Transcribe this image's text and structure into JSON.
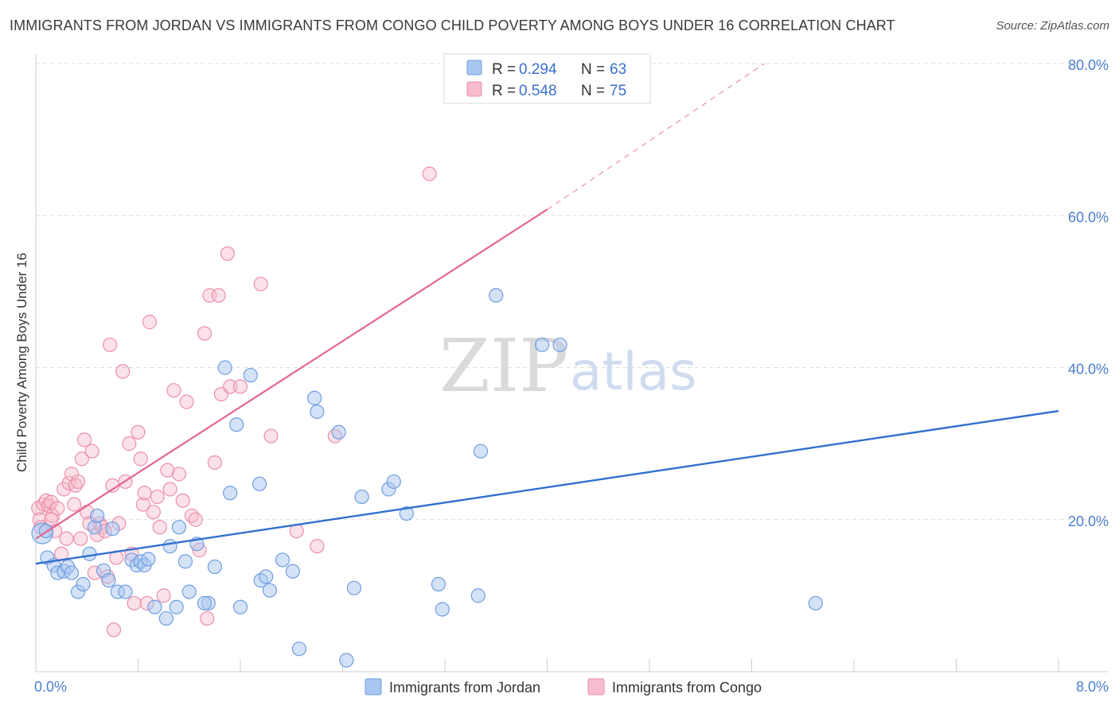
{
  "title": "IMMIGRANTS FROM JORDAN VS IMMIGRANTS FROM CONGO CHILD POVERTY AMONG BOYS UNDER 16 CORRELATION CHART",
  "source": "Source: ZipAtlas.com",
  "watermark": {
    "zip": "ZIP",
    "atlas": "atlas"
  },
  "colors": {
    "jordan_fill": "#a9c6f0",
    "jordan_stroke": "#6f9de0",
    "jordan_line": "#2f6fd0",
    "congo_fill": "#f7bccd",
    "congo_stroke": "#ec8fab",
    "congo_line": "#e2668f",
    "grid": "#dcdcdc",
    "tick_text": "#4a7fd0"
  },
  "legend": {
    "rows": [
      {
        "r_label": "R =",
        "r_value": "0.294",
        "n_label": "N =",
        "n_value": "63"
      },
      {
        "r_label": "R =",
        "r_value": "0.548",
        "n_label": "N =",
        "n_value": "75"
      }
    ]
  },
  "chart_data": {
    "type": "scatter",
    "title": "IMMIGRANTS FROM JORDAN VS IMMIGRANTS FROM CONGO CHILD POVERTY AMONG BOYS UNDER 16 CORRELATION CHART",
    "xlabel": "",
    "ylabel": "Child Poverty Among Boys Under 16",
    "xlim": [
      0,
      8
    ],
    "ylim": [
      0,
      80
    ],
    "x_tick_labels": [
      "0.0%",
      "8.0%"
    ],
    "y_ticks": [
      20,
      40,
      60,
      80
    ],
    "y_tick_labels": [
      "20.0%",
      "40.0%",
      "60.0%",
      "80.0%"
    ],
    "grid": true,
    "legend_position": "top-center",
    "series": [
      {
        "name": "Immigrants from Jordan",
        "R": 0.294,
        "N": 63,
        "trend": {
          "x": [
            0,
            8
          ],
          "y": [
            14.2,
            34.3
          ],
          "dashed_extension": false
        },
        "points": [
          [
            0.05,
            18.2
          ],
          [
            0.08,
            18.5
          ],
          [
            0.09,
            15.0
          ],
          [
            0.14,
            14.0
          ],
          [
            0.17,
            13.0
          ],
          [
            0.22,
            13.2
          ],
          [
            0.25,
            13.8
          ],
          [
            0.28,
            13.0
          ],
          [
            0.33,
            10.5
          ],
          [
            0.37,
            11.5
          ],
          [
            0.42,
            15.5
          ],
          [
            0.46,
            19.0
          ],
          [
            0.48,
            20.5
          ],
          [
            0.53,
            13.3
          ],
          [
            0.57,
            12.0
          ],
          [
            0.6,
            18.8
          ],
          [
            0.64,
            10.5
          ],
          [
            0.7,
            10.5
          ],
          [
            0.75,
            14.7
          ],
          [
            0.79,
            14.0
          ],
          [
            0.82,
            14.5
          ],
          [
            0.85,
            14.0
          ],
          [
            0.88,
            14.8
          ],
          [
            0.93,
            8.5
          ],
          [
            1.02,
            7.0
          ],
          [
            1.05,
            16.5
          ],
          [
            1.12,
            19.0
          ],
          [
            1.17,
            14.5
          ],
          [
            1.2,
            10.5
          ],
          [
            1.26,
            16.8
          ],
          [
            1.35,
            9.0
          ],
          [
            1.4,
            13.8
          ],
          [
            1.48,
            40.0
          ],
          [
            1.57,
            32.5
          ],
          [
            1.6,
            8.5
          ],
          [
            1.68,
            39.0
          ],
          [
            1.76,
            12.0
          ],
          [
            1.8,
            12.5
          ],
          [
            1.83,
            10.7
          ],
          [
            1.93,
            14.7
          ],
          [
            2.01,
            13.2
          ],
          [
            2.06,
            3.0
          ],
          [
            2.18,
            36.0
          ],
          [
            2.37,
            31.5
          ],
          [
            2.43,
            1.5
          ],
          [
            2.49,
            11.0
          ],
          [
            2.55,
            23.0
          ],
          [
            2.76,
            24.0
          ],
          [
            2.8,
            25.0
          ],
          [
            2.9,
            20.8
          ],
          [
            3.15,
            11.5
          ],
          [
            3.18,
            8.2
          ],
          [
            3.46,
            10.0
          ],
          [
            3.48,
            29.0
          ],
          [
            3.6,
            49.5
          ],
          [
            3.96,
            43.0
          ],
          [
            4.1,
            43.0
          ],
          [
            6.1,
            9.0
          ],
          [
            1.32,
            9.0
          ],
          [
            1.1,
            8.5
          ],
          [
            1.52,
            23.5
          ],
          [
            2.2,
            34.2
          ],
          [
            1.75,
            24.7
          ]
        ]
      },
      {
        "name": "Immigrants from Congo",
        "R": 0.548,
        "N": 75,
        "trend": {
          "x": [
            0,
            4.0
          ],
          "y": [
            17.5,
            60.8
          ],
          "dashed_to": [
            5.7,
            80.0
          ]
        },
        "points": [
          [
            0.02,
            21.5
          ],
          [
            0.03,
            20.0
          ],
          [
            0.04,
            19.0
          ],
          [
            0.06,
            22.0
          ],
          [
            0.08,
            22.5
          ],
          [
            0.1,
            21.8
          ],
          [
            0.12,
            22.3
          ],
          [
            0.13,
            20.5
          ],
          [
            0.15,
            18.5
          ],
          [
            0.17,
            21.5
          ],
          [
            0.2,
            15.5
          ],
          [
            0.22,
            24.0
          ],
          [
            0.24,
            17.5
          ],
          [
            0.26,
            24.8
          ],
          [
            0.28,
            26.0
          ],
          [
            0.3,
            22.0
          ],
          [
            0.31,
            24.5
          ],
          [
            0.33,
            25.0
          ],
          [
            0.35,
            17.5
          ],
          [
            0.36,
            28.0
          ],
          [
            0.38,
            30.5
          ],
          [
            0.4,
            21.0
          ],
          [
            0.42,
            19.5
          ],
          [
            0.44,
            29.0
          ],
          [
            0.46,
            13.0
          ],
          [
            0.48,
            18.0
          ],
          [
            0.5,
            19.5
          ],
          [
            0.52,
            19.0
          ],
          [
            0.54,
            18.5
          ],
          [
            0.56,
            12.5
          ],
          [
            0.58,
            43.0
          ],
          [
            0.6,
            24.5
          ],
          [
            0.61,
            5.5
          ],
          [
            0.63,
            15.0
          ],
          [
            0.65,
            19.5
          ],
          [
            0.68,
            39.5
          ],
          [
            0.7,
            25.0
          ],
          [
            0.73,
            30.0
          ],
          [
            0.75,
            15.5
          ],
          [
            0.77,
            9.0
          ],
          [
            0.8,
            31.5
          ],
          [
            0.82,
            28.0
          ],
          [
            0.84,
            22.0
          ],
          [
            0.85,
            23.5
          ],
          [
            0.87,
            9.0
          ],
          [
            0.89,
            46.0
          ],
          [
            0.92,
            21.0
          ],
          [
            0.95,
            23.0
          ],
          [
            0.97,
            19.0
          ],
          [
            1.0,
            10.0
          ],
          [
            1.03,
            26.5
          ],
          [
            1.05,
            24.0
          ],
          [
            1.08,
            37.0
          ],
          [
            1.12,
            26.0
          ],
          [
            1.15,
            22.5
          ],
          [
            1.18,
            35.5
          ],
          [
            1.22,
            20.5
          ],
          [
            1.25,
            20.0
          ],
          [
            1.28,
            16.0
          ],
          [
            1.32,
            44.5
          ],
          [
            1.34,
            7.0
          ],
          [
            1.36,
            49.5
          ],
          [
            1.4,
            27.5
          ],
          [
            1.43,
            49.5
          ],
          [
            1.45,
            36.5
          ],
          [
            1.5,
            55.0
          ],
          [
            1.52,
            37.5
          ],
          [
            1.6,
            37.5
          ],
          [
            1.76,
            51.0
          ],
          [
            1.84,
            31.0
          ],
          [
            2.04,
            18.5
          ],
          [
            2.2,
            16.5
          ],
          [
            2.34,
            31.0
          ],
          [
            3.08,
            65.5
          ],
          [
            0.12,
            20.0
          ]
        ]
      }
    ]
  },
  "bottom_legend": {
    "jordan_label": "Immigrants from Jordan",
    "congo_label": "Immigrants from Congo"
  }
}
